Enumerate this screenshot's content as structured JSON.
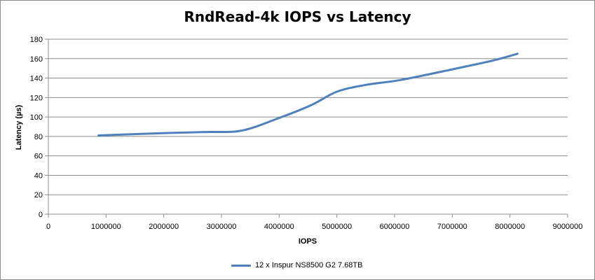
{
  "chart_data": {
    "type": "line",
    "title": "RndRead-4k IOPS vs Latency",
    "xlabel": "IOPS",
    "ylabel": "Latency (µs)",
    "xlim": [
      0,
      9000000
    ],
    "ylim": [
      0,
      180
    ],
    "xticks": [
      0,
      1000000,
      2000000,
      3000000,
      4000000,
      5000000,
      6000000,
      7000000,
      8000000,
      9000000
    ],
    "yticks": [
      0,
      20,
      40,
      60,
      80,
      100,
      120,
      140,
      160,
      180
    ],
    "grid": "horizontal",
    "legend_position": "bottom",
    "series": [
      {
        "name": "12 x Inspur NS8500 G2 7.68TB",
        "color": "#4f81bd",
        "x": [
          870000,
          1800000,
          2700000,
          3350000,
          4000000,
          4550000,
          5000000,
          5500000,
          6100000,
          7000000,
          7700000,
          8130000
        ],
        "y": [
          81,
          83,
          84.5,
          86,
          99,
          112,
          126,
          133,
          138,
          149,
          158,
          165
        ]
      }
    ]
  }
}
